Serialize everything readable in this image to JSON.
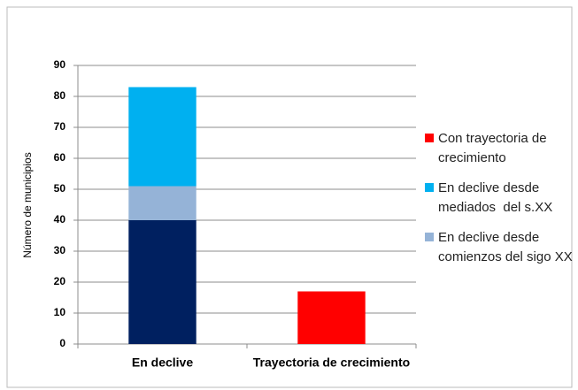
{
  "chart_data": {
    "type": "stacked-bar",
    "y_label": "Número de municipios",
    "categories": [
      "En declive",
      "Trayectoria de crecimiento"
    ],
    "series": [
      {
        "name": null,
        "color": "#002060",
        "values": [
          40,
          null
        ]
      },
      {
        "name": "En declive desde comienzos del sigo XX",
        "color": "#95b3d7",
        "values": [
          11,
          null
        ]
      },
      {
        "name": "En declive desde mediados  del s.XX",
        "color": "#00b0f0",
        "values": [
          32,
          null
        ]
      },
      {
        "name": "Con trayectoria de crecimiento",
        "color": "#ff0000",
        "values": [
          null,
          17
        ]
      }
    ],
    "ylim": [
      0,
      90
    ],
    "yticks": [
      0,
      10,
      20,
      30,
      40,
      50,
      60,
      70,
      80,
      90
    ],
    "grid": true
  }
}
